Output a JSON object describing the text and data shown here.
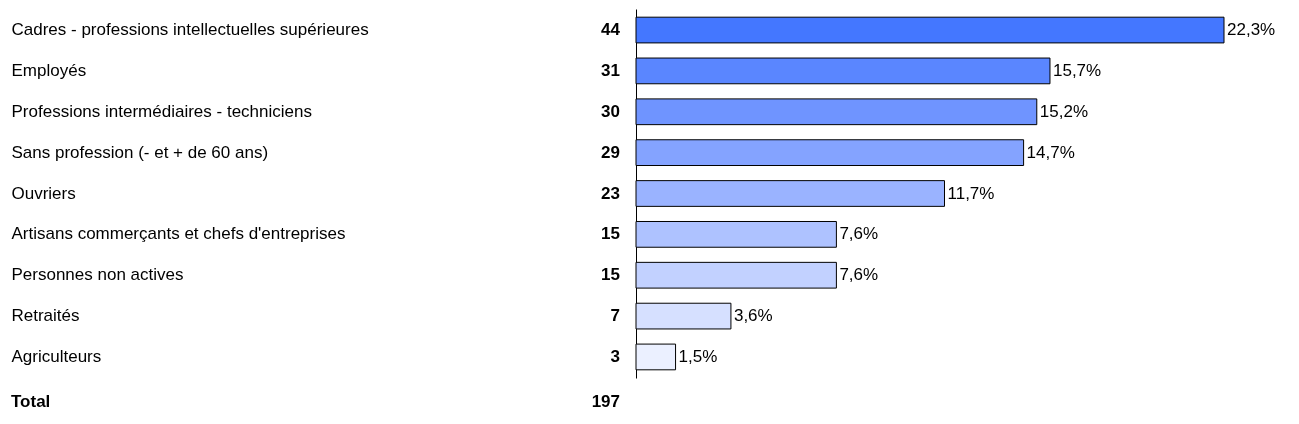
{
  "chart_data": {
    "type": "bar",
    "orientation": "horizontal",
    "tick_labels": "y",
    "categories": [
      "Cadres - professions intellectuelles supérieures",
      "Employés",
      "Professions intermédiaires - techniciens",
      "Sans profession (- et + de 60 ans)",
      "Ouvriers",
      "Artisans commerçants et chefs d'entreprises",
      "Personnes non actives",
      "Retraités",
      "Agriculteurs"
    ],
    "values": [
      22.3,
      15.7,
      15.2,
      14.7,
      11.7,
      7.6,
      7.6,
      3.6,
      1.5
    ],
    "value_labels": [
      "22,3%",
      "15,7%",
      "15,2%",
      "14,7%",
      "11,7%",
      "7,6%",
      "7,6%",
      "3,6%",
      "1,5%"
    ],
    "colors": [
      "#4477ff",
      "#5a86ff",
      "#6f94ff",
      "#84a3ff",
      "#9ab3ff",
      "#aec2ff",
      "#c2d1ff",
      "#d6e0ff",
      "#ebf0ff"
    ],
    "annotations": [
      "44",
      "31",
      "30",
      "29",
      "23",
      "15",
      "15",
      "7",
      "3",
      "Total",
      "197"
    ]
  }
}
